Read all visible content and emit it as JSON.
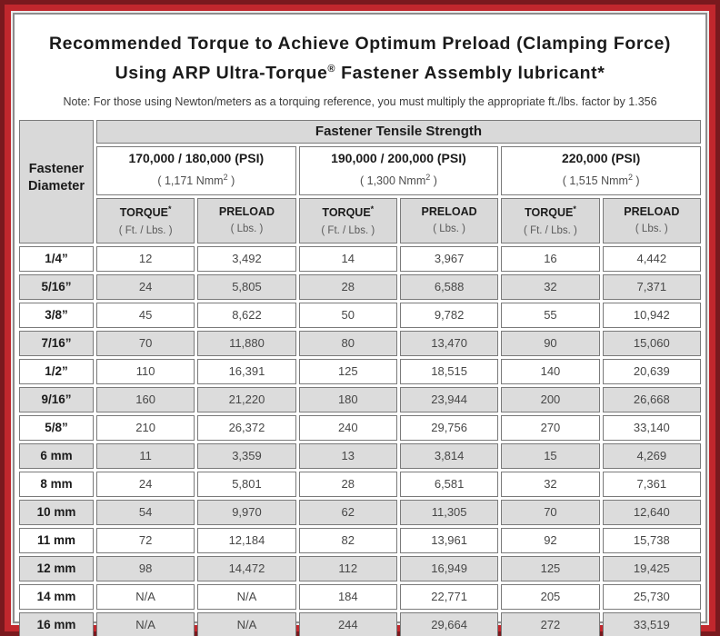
{
  "title": {
    "line1": "Recommended Torque to Achieve Optimum Preload (Clamping Force)",
    "line2_prefix": "Using ARP Ultra-Torque",
    "line2_sup": "®",
    "line2_suffix": " Fastener Assembly lubricant*"
  },
  "note": "Note: For those using Newton/meters as a torquing reference, you must multiply the appropriate ft./lbs. factor by 1.356",
  "colors": {
    "edge_maroon": "#7a191e",
    "frame_red": "#c1272d",
    "shade_gray": "#dcdcdc",
    "header_gray": "#d9d9d9",
    "cell_border_gray": "#7a7a7a"
  },
  "table": {
    "corner": {
      "line1": "Fastener",
      "line2": "Diameter"
    },
    "tensile_header": "Fastener Tensile Strength",
    "groups": [
      {
        "psi": "170,000 / 180,000 (PSI)",
        "nmm_prefix": "( 1,171 Nmm",
        "nmm_sup": "2",
        "nmm_suffix": " )"
      },
      {
        "psi": "190,000 / 200,000 (PSI)",
        "nmm_prefix": "( 1,300 Nmm",
        "nmm_sup": "2",
        "nmm_suffix": " )"
      },
      {
        "psi": "220,000 (PSI)",
        "nmm_prefix": "( 1,515 Nmm",
        "nmm_sup": "2",
        "nmm_suffix": " )"
      }
    ],
    "sub": {
      "torque_label": "TORQUE",
      "torque_sup": "*",
      "torque_unit": "( Ft. / Lbs. )",
      "preload_label": "PRELOAD",
      "preload_unit": "( Lbs. )"
    },
    "rows": [
      {
        "diameter": "1/4”",
        "values": [
          "12",
          "3,492",
          "14",
          "3,967",
          "16",
          "4,442"
        ]
      },
      {
        "diameter": "5/16”",
        "values": [
          "24",
          "5,805",
          "28",
          "6,588",
          "32",
          "7,371"
        ]
      },
      {
        "diameter": "3/8”",
        "values": [
          "45",
          "8,622",
          "50",
          "9,782",
          "55",
          "10,942"
        ]
      },
      {
        "diameter": "7/16”",
        "values": [
          "70",
          "11,880",
          "80",
          "13,470",
          "90",
          "15,060"
        ]
      },
      {
        "diameter": "1/2”",
        "values": [
          "110",
          "16,391",
          "125",
          "18,515",
          "140",
          "20,639"
        ]
      },
      {
        "diameter": "9/16”",
        "values": [
          "160",
          "21,220",
          "180",
          "23,944",
          "200",
          "26,668"
        ]
      },
      {
        "diameter": "5/8”",
        "values": [
          "210",
          "26,372",
          "240",
          "29,756",
          "270",
          "33,140"
        ]
      },
      {
        "diameter": "6 mm",
        "values": [
          "11",
          "3,359",
          "13",
          "3,814",
          "15",
          "4,269"
        ]
      },
      {
        "diameter": "8 mm",
        "values": [
          "24",
          "5,801",
          "28",
          "6,581",
          "32",
          "7,361"
        ]
      },
      {
        "diameter": "10 mm",
        "values": [
          "54",
          "9,970",
          "62",
          "11,305",
          "70",
          "12,640"
        ]
      },
      {
        "diameter": "11 mm",
        "values": [
          "72",
          "12,184",
          "82",
          "13,961",
          "92",
          "15,738"
        ]
      },
      {
        "diameter": "12 mm",
        "values": [
          "98",
          "14,472",
          "112",
          "16,949",
          "125",
          "19,425"
        ]
      },
      {
        "diameter": "14 mm",
        "values": [
          "N/A",
          "N/A",
          "184",
          "22,771",
          "205",
          "25,730"
        ]
      },
      {
        "diameter": "16 mm",
        "values": [
          "N/A",
          "N/A",
          "244",
          "29,664",
          "272",
          "33,519"
        ]
      }
    ]
  }
}
